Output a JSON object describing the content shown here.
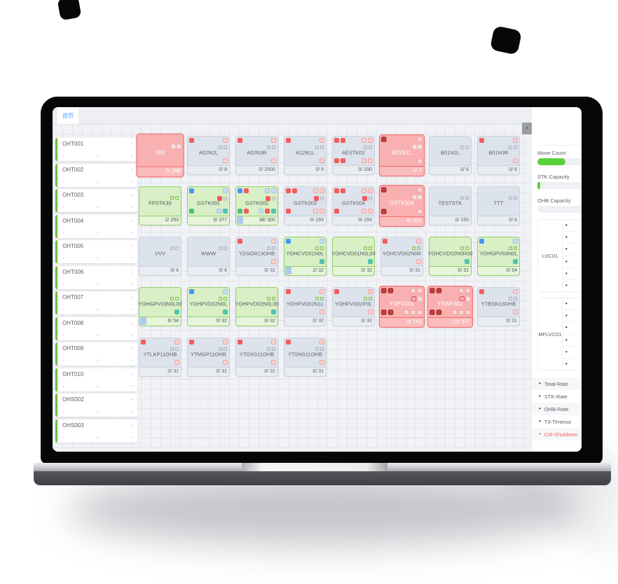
{
  "window": {
    "tab_label": "首页"
  },
  "icons": {
    "collapse_chevron": "›",
    "oht_chevron": "›",
    "dash": "-",
    "bullet": "•"
  },
  "palette": {
    "accent_blue": "#409eff",
    "alarm_red": "#f56c6c",
    "ok_green": "#67c23a",
    "idle_gray": "#dde3ec",
    "progress_green": "#5ad03c"
  },
  "sidebar": {
    "items": [
      {
        "title": "OHT001"
      },
      {
        "title": "OHT002"
      },
      {
        "title": "OHT003"
      },
      {
        "title": "OHT004"
      },
      {
        "title": "OHT005"
      },
      {
        "title": "OHT006"
      },
      {
        "title": "OHT007"
      },
      {
        "title": "OHT008"
      },
      {
        "title": "OHT009"
      },
      {
        "title": "OHT010"
      },
      {
        "title": "OHS002"
      },
      {
        "title": "OHS003"
      }
    ]
  },
  "stations": [
    {
      "name": "300",
      "state": "red",
      "big": true,
      "footer": "0/ 298",
      "badges": {
        "r2": [
          "sq-lite",
          "sq-lite"
        ]
      }
    },
    {
      "name": "A02N2L",
      "state": "gray",
      "footer": "0/ 8",
      "badges": {
        "tl": [
          "b-red"
        ],
        "tr": [
          "b-pink"
        ],
        "r2": [
          "sq-gray",
          "sq-gray"
        ],
        "br": [
          "b-pink"
        ]
      }
    },
    {
      "name": "A02N3R",
      "state": "gray",
      "footer": "0/ 2000",
      "badges": {
        "tl": [
          "b-red"
        ],
        "tr": [
          "b-pink"
        ],
        "r2": [
          "sq-gray",
          "sq-gray"
        ],
        "br": [
          "b-pink"
        ]
      }
    },
    {
      "name": "A12N1L",
      "state": "gray",
      "footer": "0/ 5",
      "badges": {
        "tl": [
          "b-red"
        ],
        "tr": [
          "b-pink"
        ],
        "r2": [
          "sq-gray",
          "sq-gray"
        ],
        "br": [
          "b-pink"
        ]
      }
    },
    {
      "name": "AESTK02",
      "state": "gray",
      "footer": "0/ 200",
      "badges": {
        "tl": [
          "b-red",
          "b-red"
        ],
        "tr": [
          "b-pink",
          "b-pink"
        ],
        "r2": [
          "sq-gray",
          "sq-gray"
        ],
        "bl": [
          "b-red",
          "b-red"
        ],
        "br": [
          "b-pink",
          "b-pink"
        ]
      }
    },
    {
      "name": "B01N1L",
      "state": "red",
      "footer": "0/ 7",
      "badges": {
        "tl": [
          "b-darkred"
        ],
        "tr": [
          "b-liteO"
        ],
        "r2": [
          "sq-lite",
          "sq-lite"
        ],
        "br": [
          "b-liteO"
        ]
      }
    },
    {
      "name": "B01N2L",
      "state": "gray",
      "footer": "0/ 6",
      "badges": {
        "r2": [
          "sq-gray",
          "sq-gray"
        ]
      }
    },
    {
      "name": "B01N3R",
      "state": "gray",
      "footer": "0/ 6",
      "badges": {
        "tl": [
          "b-red"
        ],
        "tr": [
          "b-pink"
        ],
        "r2": [
          "sq-gray",
          "sq-gray"
        ],
        "br": [
          "b-pink"
        ]
      }
    },
    {
      "name": "FPSTK30",
      "state": "green",
      "footer": "2/ 293",
      "badges": {
        "r2": [
          "sq-green",
          "sq-green"
        ]
      }
    },
    {
      "name": "GSTK001",
      "state": "green",
      "footer": "5/ 377",
      "badges": {
        "tl": [
          "b-blue"
        ],
        "tr": [
          "b-blueL"
        ],
        "r2": [
          "b-red",
          "sq-gray"
        ],
        "bl": [
          "b-green"
        ],
        "br": [
          "b-blueL",
          "b-teal"
        ]
      }
    },
    {
      "name": "GSTK002",
      "state": "green",
      "footer": "38/ 300",
      "progress": true,
      "badges": {
        "tl": [
          "b-blue",
          "b-red"
        ],
        "tr": [
          "b-blueL",
          "b-blueL"
        ],
        "r2": [
          "b-red",
          "sq-gray"
        ],
        "bl": [
          "b-green",
          "b-red"
        ],
        "br": [
          "b-blueL",
          "b-red",
          "b-teal"
        ]
      }
    },
    {
      "name": "GSTK003",
      "state": "gray",
      "footer": "0/ 293",
      "badges": {
        "tl": [
          "b-red",
          "b-red"
        ],
        "tr": [
          "b-pink",
          "b-pink"
        ],
        "r2": [
          "b-red",
          "sq-gray"
        ],
        "bl": [
          "b-red"
        ],
        "br": [
          "b-pink",
          "b-pink"
        ]
      }
    },
    {
      "name": "GSTK004",
      "state": "gray",
      "footer": "0/ 293",
      "badges": {
        "tl": [
          "b-red",
          "b-red"
        ],
        "tr": [
          "b-pink",
          "b-pink"
        ],
        "r2": [
          "b-red",
          "sq-gray"
        ],
        "bl": [
          "b-red"
        ],
        "br": [
          "b-pink",
          "b-pink"
        ]
      }
    },
    {
      "name": "GSTK904",
      "state": "red",
      "footer": "0/ 300",
      "badges": {
        "tl": [
          "b-darkred"
        ],
        "tr": [
          "b-liteO"
        ],
        "r2": [
          "sq-lite",
          "sq-lite"
        ],
        "bl": [
          "b-darkred"
        ],
        "br": [
          "b-liteO"
        ]
      }
    },
    {
      "name": "TESTSTK",
      "state": "gray",
      "footer": "0/ 150",
      "badges": {
        "r2": [
          "sq-gray",
          "sq-gray"
        ]
      }
    },
    {
      "name": "TTT",
      "state": "gray",
      "footer": "0/ 6",
      "badges": {
        "r2": [
          "sq-gray",
          "sq-gray"
        ]
      }
    },
    {
      "name": "VVV",
      "state": "gray",
      "footer": "0/ 6",
      "badges": {
        "r2": [
          "sq-gray",
          "sq-gray"
        ]
      }
    },
    {
      "name": "WWW",
      "state": "gray",
      "footer": "0/ 6",
      "badges": {
        "r2": [
          "sq-gray",
          "sq-gray"
        ]
      }
    },
    {
      "name": "YDSOR13OHB",
      "state": "gray",
      "footer": "0/ 31",
      "badges": {
        "tl": [
          "b-red"
        ],
        "tr": [
          "b-pink"
        ],
        "r2": [
          "sq-gray",
          "sq-gray"
        ],
        "br": [
          "b-pink"
        ]
      }
    },
    {
      "name": "YOHCVD01N0L",
      "state": "green",
      "footer": "2/ 32",
      "progress": true,
      "badges": {
        "tl": [
          "b-blue"
        ],
        "tr": [
          "b-blueL"
        ],
        "r2": [
          "sq-green",
          "sq-green"
        ],
        "br": [
          "b-teal"
        ]
      }
    },
    {
      "name": "YOHCVD01N0L00",
      "state": "green",
      "footer": "0/ 32",
      "badges": {
        "r2": [
          "sq-green",
          "sq-green"
        ],
        "br": [
          "b-teal"
        ]
      }
    },
    {
      "name": "YOHCVD02N0R",
      "state": "gray",
      "footer": "0/ 31",
      "badges": {
        "tl": [
          "b-red"
        ],
        "tr": [
          "b-pink"
        ],
        "r2": [
          "sq-green",
          "sq-green"
        ],
        "br": [
          "b-pink"
        ]
      }
    },
    {
      "name": "YOHCVD02N0R00",
      "state": "green",
      "footer": "0/ 31",
      "badges": {
        "r2": [
          "sq-green",
          "sq-green"
        ],
        "br": [
          "b-teal"
        ]
      }
    },
    {
      "name": "YOHGPV03N0L",
      "state": "green",
      "footer": "0/ 54",
      "badges": {
        "tl": [
          "b-blue"
        ],
        "tr": [
          "b-blueL"
        ],
        "r2": [
          "sq-green",
          "sq-green"
        ],
        "br": [
          "b-teal"
        ]
      }
    },
    {
      "name": "YOHGPV03N0L00",
      "state": "green",
      "footer": "6/ 54",
      "progress": true,
      "badges": {
        "r2": [
          "sq-green",
          "sq-green"
        ],
        "br": [
          "b-teal"
        ]
      }
    },
    {
      "name": "YOHPVD02N0L",
      "state": "green",
      "footer": "0/ 32",
      "badges": {
        "tl": [
          "b-blue"
        ],
        "tr": [
          "b-blueL"
        ],
        "r2": [
          "sq-green",
          "sq-green"
        ],
        "br": [
          "b-teal"
        ]
      }
    },
    {
      "name": "YOHPVD02N0L00",
      "state": "green",
      "footer": "0/ 32",
      "badges": {
        "r2": [
          "sq-green",
          "sq-green"
        ],
        "br": [
          "b-teal"
        ]
      }
    },
    {
      "name": "YOHPVD02N1L",
      "state": "gray",
      "footer": "0/ 32",
      "badges": {
        "tl": [
          "b-red"
        ],
        "tr": [
          "b-pink"
        ],
        "r2": [
          "sq-green",
          "sq-green"
        ],
        "br": [
          "b-pink"
        ]
      }
    },
    {
      "name": "YOHPVD02P0L",
      "state": "gray",
      "footer": "0/ 32",
      "badges": {
        "tl": [
          "b-red"
        ],
        "tr": [
          "b-pink"
        ],
        "r2": [
          "sq-green",
          "sq-green"
        ],
        "br": [
          "b-pink"
        ]
      }
    },
    {
      "name": "YSPVD01",
      "state": "red",
      "footer": "6/ 150",
      "badges": {
        "tl": [
          "b-darkred",
          "b-darkred"
        ],
        "tr": [
          "b-liteO",
          "b-liteO"
        ],
        "r2": [
          "b-redO",
          "sq-lite"
        ],
        "bl": [
          "b-darkred",
          "b-darkred"
        ],
        "br": [
          "b-liteO",
          "b-liteO",
          "b-liteO"
        ]
      }
    },
    {
      "name": "YSWFS02",
      "state": "red",
      "footer": "13/ 377",
      "badges": {
        "tl": [
          "b-darkred",
          "b-darkred"
        ],
        "tr": [
          "b-liteO",
          "b-liteO"
        ],
        "r2": [
          "b-redO",
          "sq-lite"
        ],
        "bl": [
          "b-darkred",
          "b-darkred"
        ],
        "br": [
          "b-liteO",
          "b-liteO",
          "b-liteO"
        ]
      }
    },
    {
      "name": "YTBSN13OHB",
      "state": "gray",
      "footer": "0/ 31",
      "badges": {
        "tl": [
          "b-red"
        ],
        "tr": [
          "b-pink"
        ],
        "r2": [
          "sq-gray",
          "sq-gray"
        ],
        "br": [
          "b-pink"
        ]
      }
    },
    {
      "name": "YTLKP11OHB",
      "state": "gray",
      "footer": "0/ 31",
      "badges": {
        "tl": [
          "b-red"
        ],
        "tr": [
          "b-pink"
        ],
        "r2": [
          "sq-gray",
          "sq-gray"
        ],
        "br": [
          "b-pink"
        ]
      }
    },
    {
      "name": "YTMGP11OHB",
      "state": "gray",
      "footer": "0/ 31",
      "badges": {
        "tl": [
          "b-red"
        ],
        "tr": [
          "b-pink"
        ],
        "r2": [
          "sq-gray",
          "sq-gray"
        ],
        "br": [
          "b-pink"
        ]
      }
    },
    {
      "name": "YTOXS11OHB",
      "state": "gray",
      "footer": "0/ 31",
      "badges": {
        "tl": [
          "b-red"
        ],
        "tr": [
          "b-pink"
        ],
        "r2": [
          "sq-gray",
          "sq-gray"
        ],
        "br": [
          "b-pink"
        ]
      }
    },
    {
      "name": "YTSNS11OHB",
      "state": "gray",
      "footer": "0/ 31",
      "badges": {
        "tl": [
          "b-red"
        ],
        "tr": [
          "b-pink"
        ],
        "r2": [
          "sq-gray",
          "sq-gray"
        ],
        "br": [
          "b-pink"
        ]
      }
    }
  ],
  "right_panel": {
    "gauges": [
      {
        "label": "Move Count",
        "fill_pct": 40
      },
      {
        "label": "STK Capacity",
        "fill_pct": 4
      },
      {
        "label": "OHB Capacity",
        "fill_pct": 0
      }
    ],
    "boxes": [
      {
        "label": "LVC01",
        "row_count": 6
      },
      {
        "label": "MFLVC01",
        "row_count": 6
      }
    ],
    "legend": [
      {
        "label": "Total-Rate",
        "red": false
      },
      {
        "label": "STK-Rate",
        "red": false
      },
      {
        "label": "OHB-Rate",
        "red": false
      },
      {
        "label": "T3-Timeout",
        "red": false
      },
      {
        "label": "Ctrl-Shutdown",
        "red": true
      }
    ]
  }
}
